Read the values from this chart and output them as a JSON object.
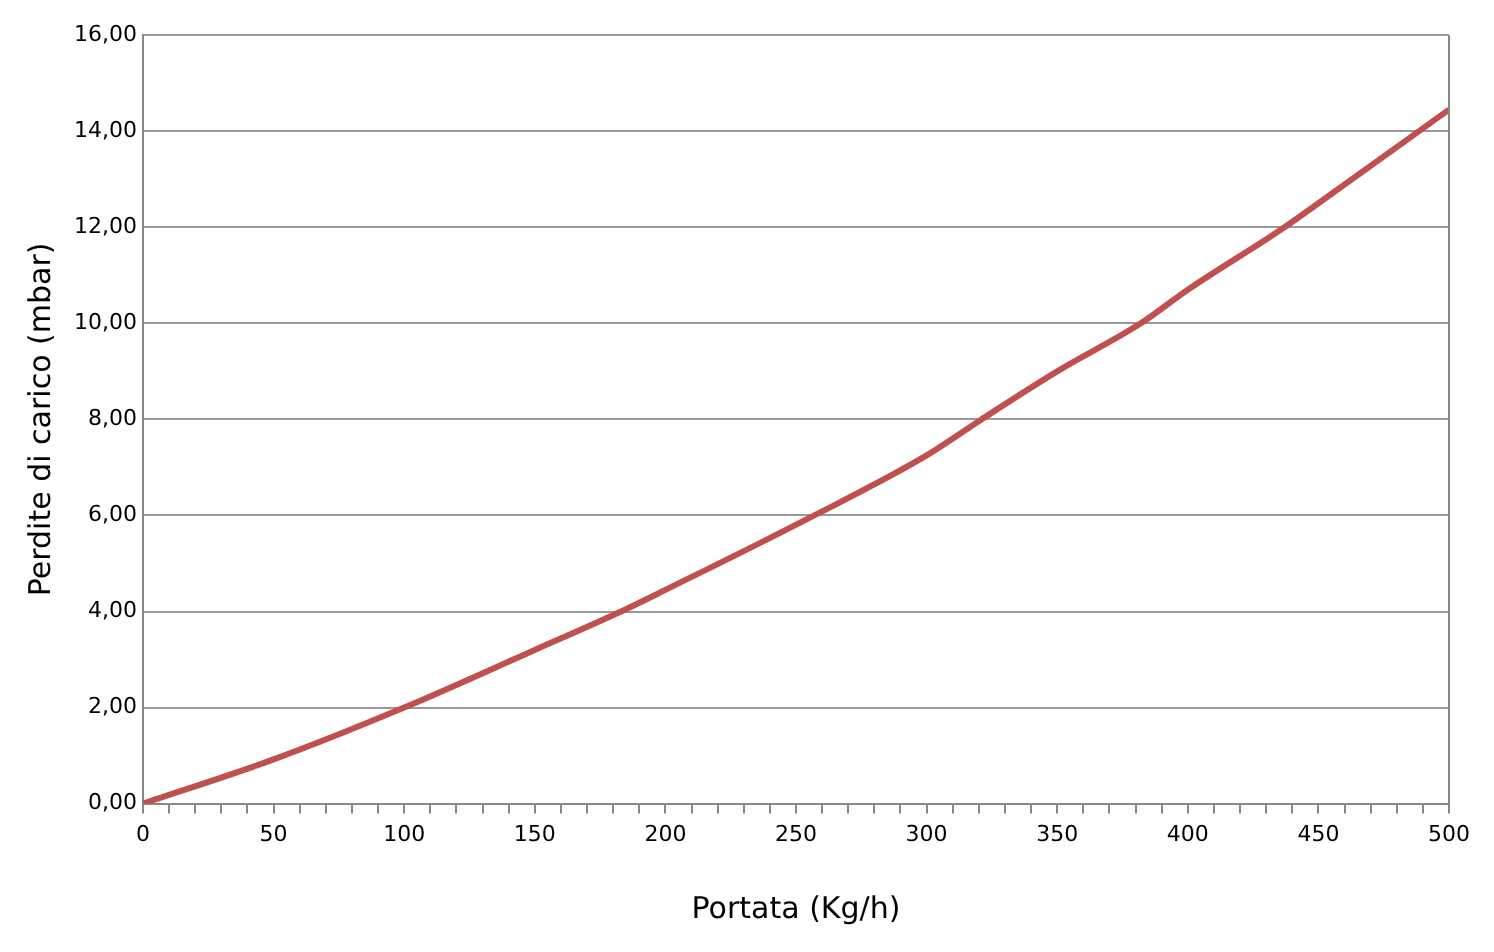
{
  "chart_data": {
    "type": "line",
    "xlabel": "Portata (Kg/h)",
    "ylabel": "Perdite di carico (mbar)",
    "x": [
      0,
      50,
      100,
      150,
      183,
      200,
      257,
      300,
      321,
      350,
      382,
      400,
      437,
      450,
      500
    ],
    "series": [
      {
        "color": "#c0504d",
        "values": [
          0,
          0.92,
          2.0,
          3.2,
          4.0,
          4.45,
          6.0,
          7.25,
          8.0,
          9.0,
          10.0,
          10.7,
          12.0,
          12.5,
          14.45
        ]
      }
    ],
    "xlim": [
      0,
      500
    ],
    "xticks": [
      0,
      {
        "value": 10,
        "label": null
      },
      {
        "value": 20,
        "label": null
      },
      {
        "value": 30,
        "label": null
      },
      {
        "value": 40,
        "label": null
      },
      50,
      {
        "value": 60,
        "label": null
      },
      {
        "value": 70,
        "label": null
      },
      {
        "value": 80,
        "label": null
      },
      {
        "value": 90,
        "label": null
      },
      100,
      {
        "value": 110,
        "label": null
      },
      {
        "value": 120,
        "label": null
      },
      {
        "value": 130,
        "label": null
      },
      {
        "value": 140,
        "label": null
      },
      150,
      {
        "value": 160,
        "label": null
      },
      {
        "value": 170,
        "label": null
      },
      {
        "value": 180,
        "label": null
      },
      {
        "value": 190,
        "label": null
      },
      200,
      {
        "value": 210,
        "label": null
      },
      {
        "value": 220,
        "label": null
      },
      {
        "value": 230,
        "label": null
      },
      {
        "value": 240,
        "label": null
      },
      250,
      {
        "value": 260,
        "label": null
      },
      {
        "value": 270,
        "label": null
      },
      {
        "value": 280,
        "label": null
      },
      {
        "value": 290,
        "label": null
      },
      300,
      {
        "value": 310,
        "label": null
      },
      {
        "value": 320,
        "label": null
      },
      {
        "value": 330,
        "label": null
      },
      {
        "value": 340,
        "label": null
      },
      350,
      {
        "value": 360,
        "label": null
      },
      {
        "value": 370,
        "label": null
      },
      {
        "value": 380,
        "label": null
      },
      {
        "value": 390,
        "label": null
      },
      400,
      {
        "value": 410,
        "label": null
      },
      {
        "value": 420,
        "label": null
      },
      {
        "value": 430,
        "label": null
      },
      {
        "value": 440,
        "label": null
      },
      450,
      {
        "value": 460,
        "label": null
      },
      {
        "value": 470,
        "label": null
      },
      {
        "value": 480,
        "label": null
      },
      {
        "value": 490,
        "label": null
      },
      500
    ],
    "ylim": [
      0,
      16
    ],
    "yticks": [
      {
        "value": 0,
        "label": "0,00"
      },
      {
        "value": 2,
        "label": "2,00"
      },
      {
        "value": 4,
        "label": "4,00"
      },
      {
        "value": 6,
        "label": "6,00"
      },
      {
        "value": 8,
        "label": "8,00"
      },
      {
        "value": 10,
        "label": "10,00"
      },
      {
        "value": 12,
        "label": "12,00"
      },
      {
        "value": 14,
        "label": "14,00"
      },
      {
        "value": 16,
        "label": "16,00"
      }
    ],
    "grid": "y",
    "marker": "none",
    "line_style": "solid",
    "legend": false
  }
}
